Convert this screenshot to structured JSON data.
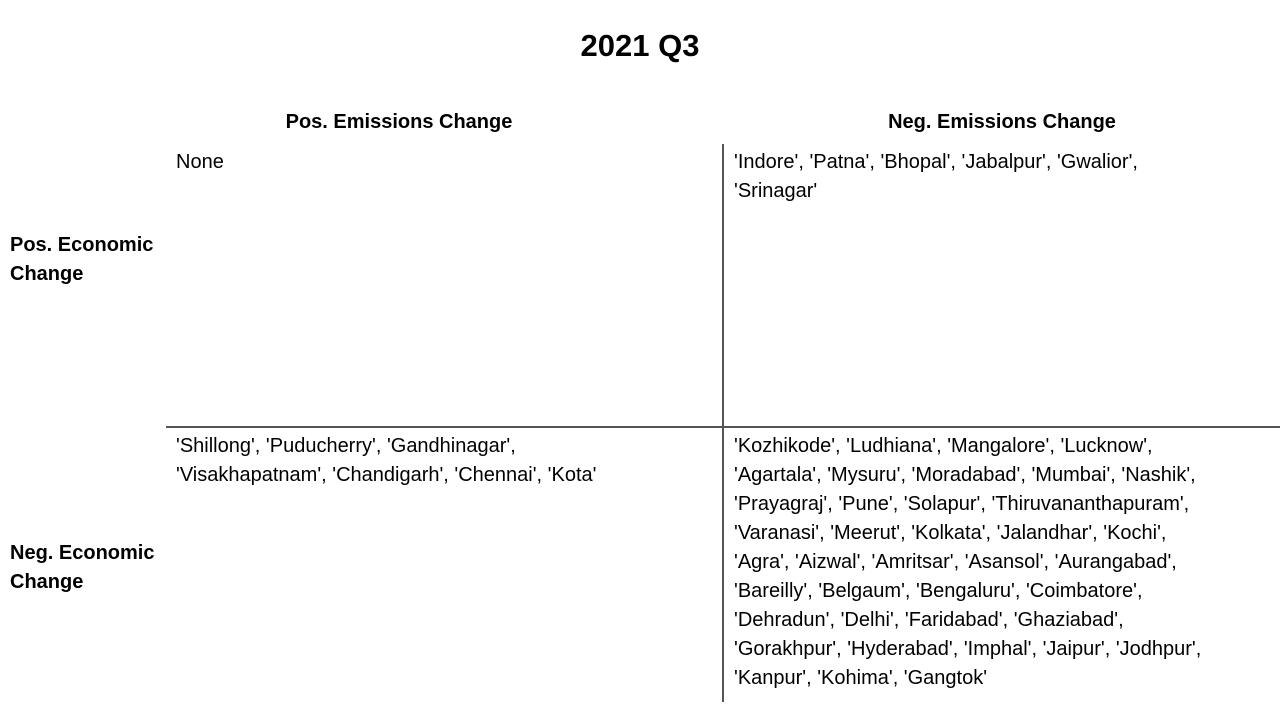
{
  "title": "2021 Q3",
  "columns": {
    "pos": "Pos. Emissions Change",
    "neg": "Neg. Emissions Change"
  },
  "rows": {
    "pos": "Pos. Economic\nChange",
    "neg": "Neg. Economic\nChange"
  },
  "cells": {
    "pos_econ_pos_emis": "None",
    "pos_econ_neg_emis": "'Indore', 'Patna', 'Bhopal', 'Jabalpur', 'Gwalior',\n'Srinagar'",
    "neg_econ_pos_emis": "'Shillong', 'Puducherry', 'Gandhinagar',\n'Visakhapatnam', 'Chandigarh', 'Chennai', 'Kota'",
    "neg_econ_neg_emis": "'Kozhikode', 'Ludhiana', 'Mangalore', 'Lucknow',\n'Agartala', 'Mysuru', 'Moradabad', 'Mumbai', 'Nashik',\n'Prayagraj', 'Pune', 'Solapur', 'Thiruvananthapuram',\n'Varanasi', 'Meerut', 'Kolkata', 'Jalandhar', 'Kochi',\n'Agra', 'Aizwal', 'Amritsar', 'Asansol', 'Aurangabad',\n'Bareilly', 'Belgaum', 'Bengaluru', 'Coimbatore',\n'Dehradun', 'Delhi', 'Faridabad', 'Ghaziabad',\n'Gorakhpur', 'Hyderabad', 'Imphal', 'Jaipur', 'Jodhpur',\n'Kanpur', 'Kohima', 'Gangtok'"
  }
}
